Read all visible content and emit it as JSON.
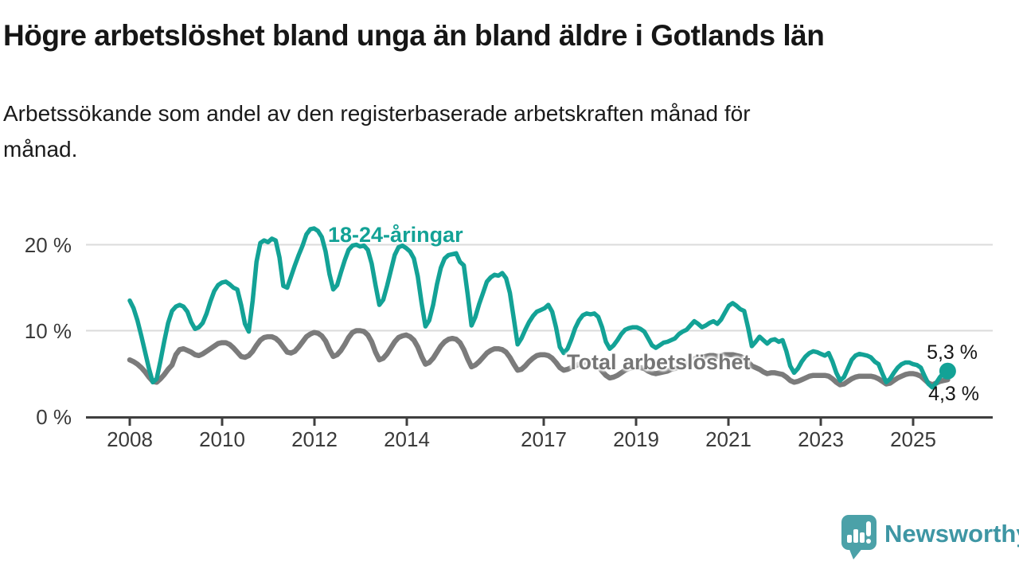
{
  "header": {
    "title": "Högre arbetslöshet bland unga än bland äldre i Gotlands län",
    "subtitle_line1": "Arbetssökande som andel av den registerbaserade arbetskraften månad för",
    "subtitle_line2": "månad."
  },
  "chart_data": {
    "type": "line",
    "unit": "percent",
    "start_month": "2008-01",
    "end_month": "2025-10",
    "frequency": "monthly",
    "ylim": [
      0,
      22.5
    ],
    "grid": "horizontal gridlines at 10 and 20",
    "legend_position": "labels inline on chart",
    "y_ticks": [
      {
        "value": 0,
        "label": "0 %"
      },
      {
        "value": 10,
        "label": "10 %"
      },
      {
        "value": 20,
        "label": "20 %"
      }
    ],
    "x_ticks": [
      "2008",
      "2010",
      "2012",
      "2014",
      "2017",
      "2019",
      "2021",
      "2023",
      "2025"
    ],
    "series": [
      {
        "name": "Total arbetslöshet",
        "color": "#7b7b7b",
        "end_label": "4,3 %",
        "last_value": 4.3,
        "values": [
          6.6,
          6.4,
          6.1,
          5.7,
          5.2,
          4.6,
          4.1,
          4.0,
          4.4,
          4.9,
          5.5,
          6.0,
          7.2,
          7.8,
          7.9,
          7.7,
          7.5,
          7.2,
          7.1,
          7.3,
          7.6,
          7.9,
          8.2,
          8.5,
          8.6,
          8.6,
          8.4,
          8.0,
          7.5,
          7.0,
          6.9,
          7.1,
          7.6,
          8.3,
          8.9,
          9.2,
          9.3,
          9.3,
          9.1,
          8.7,
          8.1,
          7.5,
          7.4,
          7.6,
          8.1,
          8.7,
          9.3,
          9.6,
          9.8,
          9.7,
          9.4,
          8.8,
          7.8,
          7.0,
          7.2,
          7.7,
          8.4,
          9.2,
          9.8,
          10.0,
          10.0,
          9.9,
          9.5,
          8.7,
          7.5,
          6.6,
          6.8,
          7.3,
          8.0,
          8.7,
          9.2,
          9.4,
          9.5,
          9.3,
          8.9,
          8.1,
          7.0,
          6.1,
          6.3,
          6.8,
          7.5,
          8.2,
          8.7,
          9.0,
          9.1,
          9.0,
          8.6,
          7.8,
          6.7,
          5.8,
          6.0,
          6.4,
          6.9,
          7.4,
          7.7,
          7.9,
          7.9,
          7.8,
          7.5,
          6.9,
          6.1,
          5.4,
          5.5,
          5.9,
          6.4,
          6.8,
          7.1,
          7.2,
          7.2,
          7.1,
          6.8,
          6.3,
          5.7,
          5.4,
          5.5,
          5.7,
          5.9,
          6.1,
          6.2,
          6.2,
          6.1,
          6.0,
          5.8,
          5.3,
          4.8,
          4.5,
          4.6,
          4.8,
          5.1,
          5.4,
          5.6,
          5.7,
          5.8,
          5.7,
          5.6,
          5.3,
          5.1,
          5.0,
          5.1,
          5.2,
          5.3,
          5.5,
          5.6,
          5.8,
          6.0,
          6.1,
          6.4,
          6.7,
          6.9,
          6.9,
          7.0,
          7.1,
          7.1,
          7.0,
          7.1,
          7.2,
          7.2,
          7.2,
          7.1,
          7.0,
          6.8,
          6.4,
          5.9,
          5.7,
          5.5,
          5.2,
          5.0,
          5.1,
          5.1,
          5.0,
          4.9,
          4.6,
          4.2,
          4.0,
          4.1,
          4.3,
          4.5,
          4.7,
          4.8,
          4.8,
          4.8,
          4.8,
          4.7,
          4.4,
          4.0,
          3.7,
          3.8,
          4.1,
          4.4,
          4.6,
          4.7,
          4.7,
          4.7,
          4.7,
          4.6,
          4.4,
          4.1,
          3.8,
          3.9,
          4.2,
          4.5,
          4.7,
          4.9,
          5.0,
          5.0,
          4.9,
          4.7,
          4.3,
          3.9,
          3.7,
          3.9,
          4.1,
          4.2,
          4.3
        ]
      },
      {
        "name": "18-24-åringar",
        "color": "#13a296",
        "end_label": "5,3 %",
        "last_value": 5.3,
        "values": [
          13.5,
          12.6,
          11.2,
          9.4,
          7.5,
          5.6,
          4.0,
          4.4,
          6.5,
          8.8,
          10.9,
          12.3,
          12.8,
          13.0,
          12.8,
          12.2,
          11.0,
          10.2,
          10.4,
          10.9,
          12.0,
          13.4,
          14.6,
          15.3,
          15.6,
          15.7,
          15.4,
          15.0,
          14.8,
          13.0,
          10.8,
          9.9,
          13.5,
          18.0,
          20.2,
          20.5,
          20.3,
          20.7,
          20.5,
          18.5,
          15.2,
          15.0,
          16.3,
          17.6,
          18.8,
          19.9,
          21.2,
          21.8,
          21.9,
          21.6,
          20.9,
          19.2,
          16.6,
          14.8,
          15.3,
          16.8,
          18.2,
          19.4,
          19.9,
          20.0,
          19.8,
          19.9,
          19.4,
          17.8,
          15.3,
          13.0,
          13.6,
          15.2,
          17.0,
          18.8,
          19.7,
          19.9,
          19.6,
          19.2,
          18.4,
          16.3,
          13.2,
          10.5,
          11.2,
          13.0,
          15.4,
          17.3,
          18.4,
          18.8,
          18.9,
          19.0,
          18.0,
          17.6,
          14.2,
          10.6,
          11.6,
          13.1,
          14.4,
          15.7,
          16.2,
          16.5,
          16.4,
          16.7,
          16.1,
          14.4,
          11.4,
          8.4,
          9.1,
          10.1,
          11.0,
          11.7,
          12.2,
          12.4,
          12.6,
          13.0,
          12.2,
          10.4,
          8.1,
          7.4,
          7.9,
          9.0,
          10.3,
          11.2,
          11.8,
          12.0,
          11.9,
          12.0,
          11.6,
          10.4,
          8.7,
          7.9,
          8.3,
          8.9,
          9.6,
          10.1,
          10.3,
          10.4,
          10.4,
          10.2,
          9.9,
          9.1,
          8.3,
          8.0,
          8.3,
          8.6,
          8.7,
          8.9,
          9.1,
          9.6,
          9.9,
          10.1,
          10.6,
          11.1,
          10.8,
          10.4,
          10.6,
          10.9,
          11.1,
          10.8,
          11.3,
          12.1,
          12.9,
          13.2,
          12.9,
          12.5,
          12.3,
          10.4,
          8.2,
          8.7,
          9.3,
          8.9,
          8.5,
          8.9,
          9.0,
          8.7,
          8.9,
          7.6,
          5.9,
          5.1,
          5.6,
          6.4,
          7.0,
          7.4,
          7.6,
          7.5,
          7.3,
          7.1,
          7.4,
          6.4,
          5.1,
          4.2,
          4.6,
          5.6,
          6.6,
          7.1,
          7.3,
          7.2,
          7.1,
          6.9,
          6.4,
          6.1,
          5.0,
          4.0,
          4.4,
          5.1,
          5.7,
          6.1,
          6.3,
          6.3,
          6.1,
          6.0,
          5.7,
          4.7,
          3.8,
          3.4,
          3.9,
          4.6,
          5.1,
          5.3
        ]
      }
    ]
  },
  "footer": {
    "brand": "Newsworthy",
    "logo_icon": "speech-bubble-bar-chart-icon",
    "icon_color": "#4ba1a8",
    "brand_text_color": "#3e96a4"
  }
}
